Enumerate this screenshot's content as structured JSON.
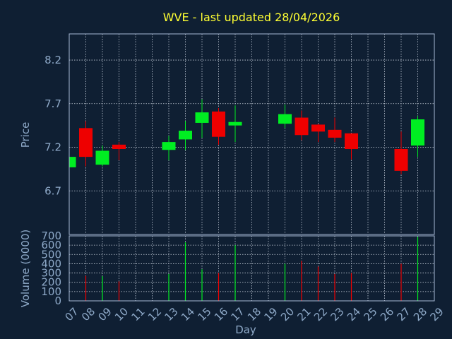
{
  "colors": {
    "background": "#0f1f33",
    "frame": "#a7b8d4",
    "grid": "#c8d0dc",
    "title": "#ffff33",
    "label": "#8ea9c8",
    "up": "#00ee22",
    "down": "#ee0000"
  },
  "chart_data": [
    {
      "type": "candlestick",
      "title": "WVE - last updated 28/04/2026",
      "xlabel": "Day",
      "ylabel": "Price",
      "x_ticks": [
        "07",
        "08",
        "09",
        "10",
        "11",
        "12",
        "13",
        "14",
        "15",
        "16",
        "17",
        "18",
        "19",
        "20",
        "21",
        "22",
        "23",
        "24",
        "25",
        "26",
        "27",
        "28",
        "29"
      ],
      "y_ticks": [
        "8.2",
        "7.7",
        "7.2",
        "6.7"
      ],
      "ylim": [
        6.2,
        8.5
      ],
      "grid": true,
      "series": [
        {
          "day": "07",
          "open": 6.97,
          "high": 7.09,
          "low": 6.96,
          "close": 7.09
        },
        {
          "day": "08",
          "open": 7.42,
          "high": 7.5,
          "low": 6.98,
          "close": 7.09
        },
        {
          "day": "09",
          "open": 7.0,
          "high": 7.22,
          "low": 6.98,
          "close": 7.16
        },
        {
          "day": "10",
          "open": 7.23,
          "high": 7.26,
          "low": 7.05,
          "close": 7.18
        },
        {
          "day": "13",
          "open": 7.17,
          "high": 7.33,
          "low": 7.05,
          "close": 7.26
        },
        {
          "day": "14",
          "open": 7.29,
          "high": 7.5,
          "low": 7.17,
          "close": 7.39
        },
        {
          "day": "15",
          "open": 7.48,
          "high": 7.75,
          "low": 7.31,
          "close": 7.6
        },
        {
          "day": "16",
          "open": 7.61,
          "high": 7.65,
          "low": 7.23,
          "close": 7.32
        },
        {
          "day": "17",
          "open": 7.45,
          "high": 7.68,
          "low": 7.26,
          "close": 7.49
        },
        {
          "day": "20",
          "open": 7.47,
          "high": 7.69,
          "low": 7.42,
          "close": 7.58
        },
        {
          "day": "21",
          "open": 7.54,
          "high": 7.62,
          "low": 7.28,
          "close": 7.34
        },
        {
          "day": "22",
          "open": 7.46,
          "high": 7.47,
          "low": 7.26,
          "close": 7.38
        },
        {
          "day": "23",
          "open": 7.4,
          "high": 7.54,
          "low": 7.26,
          "close": 7.31
        },
        {
          "day": "24",
          "open": 7.36,
          "high": 7.36,
          "low": 7.06,
          "close": 7.18
        },
        {
          "day": "27",
          "open": 7.18,
          "high": 7.38,
          "low": 6.89,
          "close": 6.93
        },
        {
          "day": "28",
          "open": 7.22,
          "high": 7.56,
          "low": 7.09,
          "close": 7.52
        }
      ]
    },
    {
      "type": "bar",
      "xlabel": "Day",
      "ylabel": "Volume (0000)",
      "y_ticks": [
        "700",
        "600",
        "500",
        "400",
        "300",
        "200",
        "100",
        "0"
      ],
      "ylim": [
        0,
        700
      ],
      "grid": true,
      "series": [
        {
          "day": "08",
          "value": 270,
          "direction": "down"
        },
        {
          "day": "09",
          "value": 265,
          "direction": "up"
        },
        {
          "day": "10",
          "value": 210,
          "direction": "down"
        },
        {
          "day": "13",
          "value": 290,
          "direction": "up"
        },
        {
          "day": "14",
          "value": 630,
          "direction": "up"
        },
        {
          "day": "15",
          "value": 340,
          "direction": "up"
        },
        {
          "day": "16",
          "value": 300,
          "direction": "down"
        },
        {
          "day": "17",
          "value": 600,
          "direction": "up"
        },
        {
          "day": "20",
          "value": 400,
          "direction": "up"
        },
        {
          "day": "21",
          "value": 430,
          "direction": "down"
        },
        {
          "day": "22",
          "value": 370,
          "direction": "down"
        },
        {
          "day": "23",
          "value": 290,
          "direction": "down"
        },
        {
          "day": "24",
          "value": 300,
          "direction": "down"
        },
        {
          "day": "27",
          "value": 400,
          "direction": "down"
        },
        {
          "day": "28",
          "value": 690,
          "direction": "up"
        }
      ]
    }
  ]
}
